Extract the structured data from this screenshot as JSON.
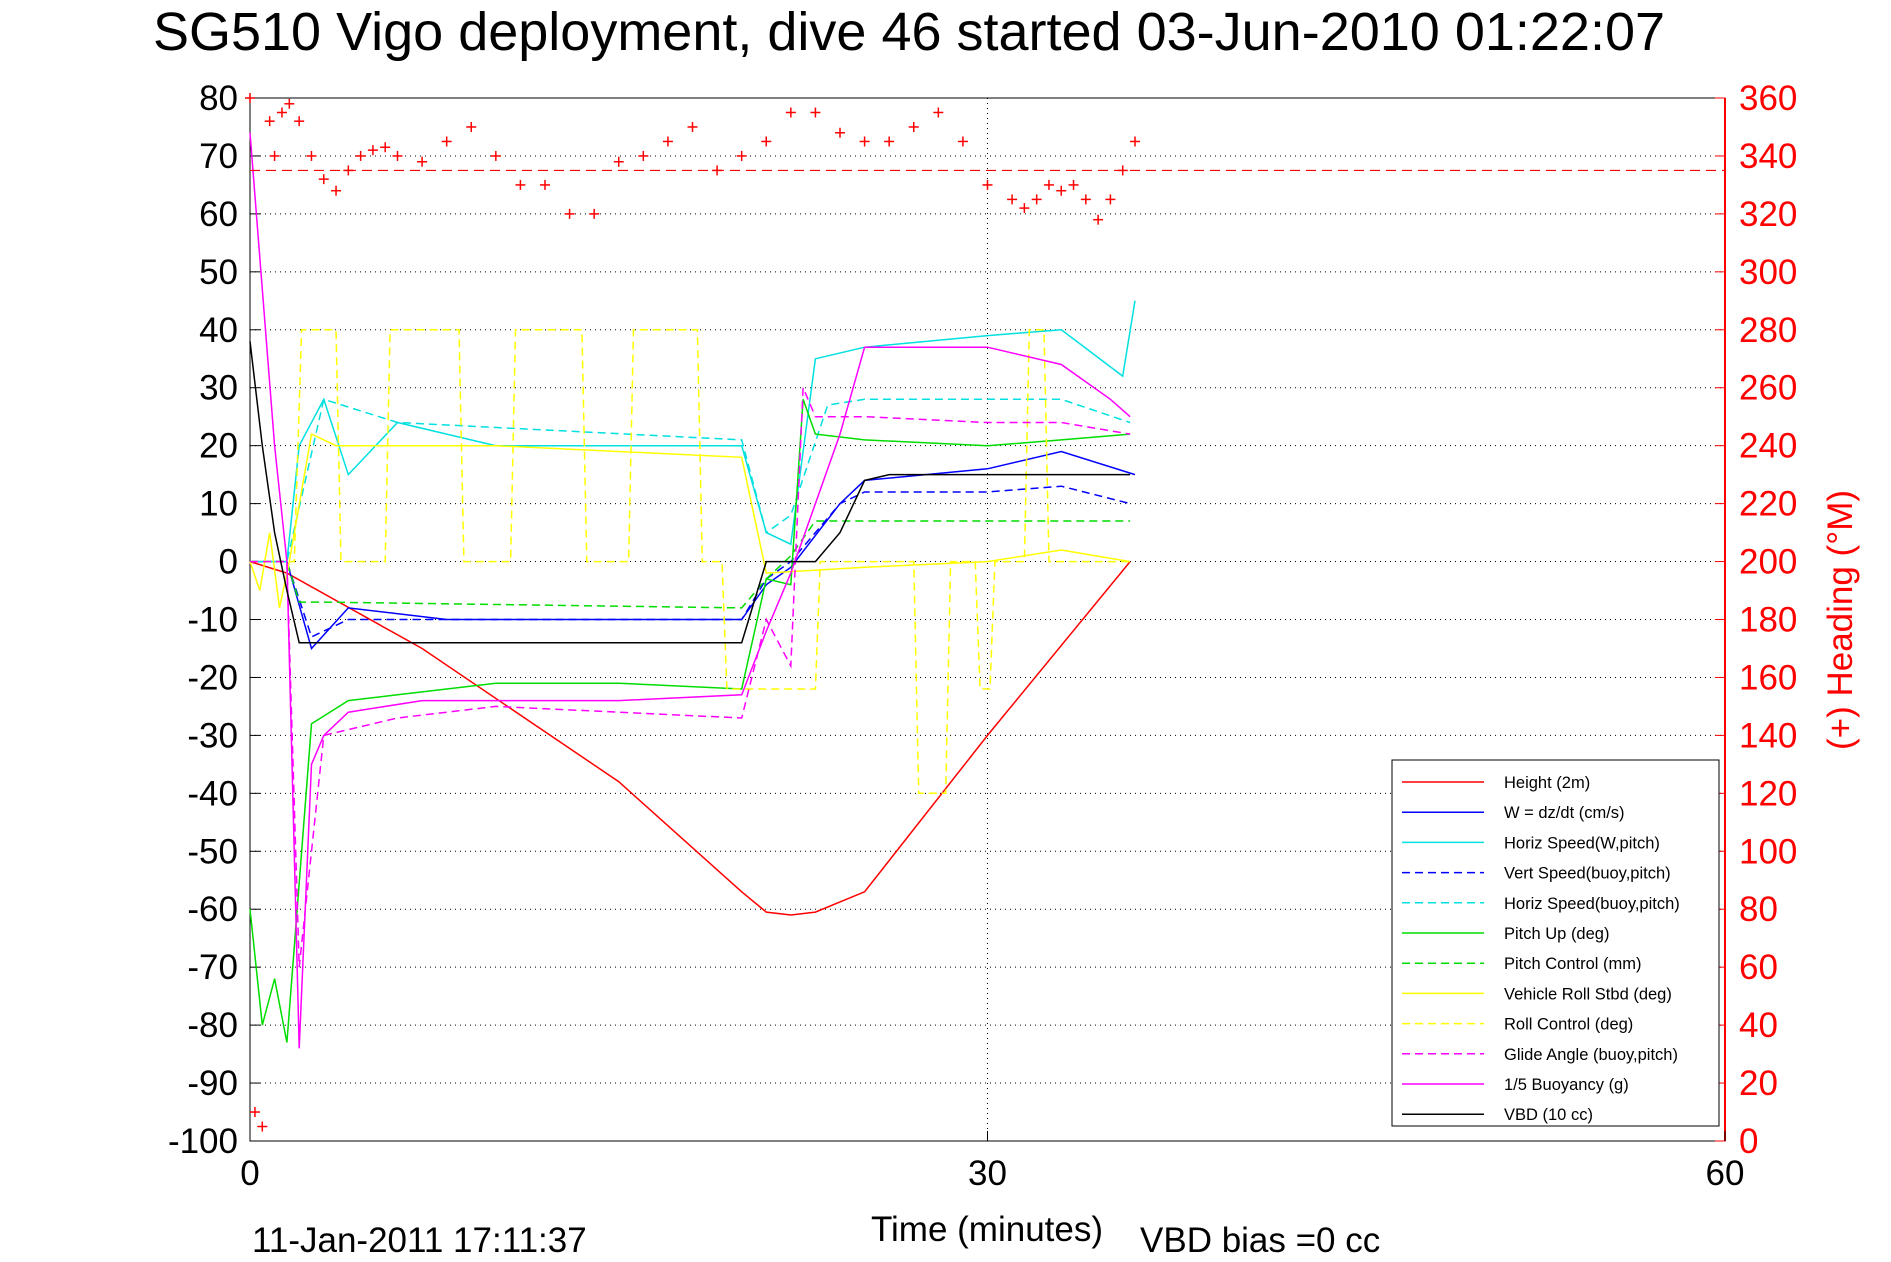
{
  "chart_data": {
    "type": "line",
    "title": "SG510 Vigo deployment, dive 46 started 03-Jun-2010 01:22:07",
    "xlabel": "Time (minutes)",
    "ylabel_left": "",
    "ylabel_right": "(+) Heading (°M)",
    "xlim": [
      0,
      60
    ],
    "ylim_left": [
      -100,
      80
    ],
    "ylim_right": [
      0,
      360
    ],
    "x_ticks": [
      "0",
      "30",
      "60"
    ],
    "y_ticks_left": [
      "80",
      "70",
      "60",
      "50",
      "40",
      "30",
      "20",
      "10",
      "0",
      "-10",
      "-20",
      "-30",
      "-40",
      "-50",
      "-60",
      "-70",
      "-80",
      "-90",
      "-100"
    ],
    "y_ticks_right": [
      "360",
      "340",
      "320",
      "300",
      "280",
      "260",
      "240",
      "220",
      "200",
      "180",
      "160",
      "140",
      "120",
      "100",
      "80",
      "60",
      "40",
      "20",
      "0"
    ],
    "grid": "dotted",
    "legend_position": "bottom-right",
    "footer_left": "11-Jan-2011 17:11:37",
    "footer_right": "VBD bias =0 cc",
    "series": [
      {
        "name": "Height (2m)",
        "color": "#ff0000",
        "style": "solid",
        "x": [
          0,
          1.5,
          7,
          15,
          20,
          21,
          22,
          23,
          25,
          30,
          35.8
        ],
        "y": [
          0,
          -2,
          -15,
          -38,
          -57,
          -60.5,
          -61,
          -60.5,
          -57,
          -30,
          0
        ]
      },
      {
        "name": "W = dz/dt (cm/s)",
        "color": "#0000ff",
        "style": "solid",
        "x": [
          0,
          1.5,
          2.5,
          4,
          8,
          12,
          20,
          21,
          22,
          24,
          25,
          30,
          33,
          36
        ],
        "y": [
          0,
          0,
          -15,
          -8,
          -10,
          -10,
          -10,
          -4,
          -1,
          10,
          14,
          16,
          19,
          15
        ]
      },
      {
        "name": "Horiz Speed(W,pitch)",
        "color": "#00e0e0",
        "style": "solid",
        "x": [
          0,
          1.5,
          2,
          3,
          4,
          6,
          10,
          20,
          21,
          22,
          23,
          25,
          30,
          33,
          35.5,
          36
        ],
        "y": [
          0,
          0,
          20,
          28,
          15,
          24,
          20,
          20,
          5,
          3,
          35,
          37,
          39,
          40,
          32,
          45
        ]
      },
      {
        "name": "Vert Speed(buoy,pitch)",
        "color": "#0000ff",
        "style": "dashed",
        "x": [
          0,
          1.5,
          2.5,
          4,
          20,
          21,
          22,
          24,
          25,
          30,
          33,
          35.8
        ],
        "y": [
          0,
          0,
          -13,
          -10,
          -10,
          -3,
          0,
          10,
          12,
          12,
          13,
          10
        ]
      },
      {
        "name": "Horiz Speed(buoy,pitch)",
        "color": "#00e0e0",
        "style": "dashed",
        "x": [
          0,
          1.5,
          3,
          6,
          20,
          21,
          22,
          23.5,
          25,
          30,
          33,
          35.8
        ],
        "y": [
          0,
          0,
          28,
          24,
          21,
          5,
          8,
          27,
          28,
          28,
          28,
          24
        ]
      },
      {
        "name": "Pitch Up (deg)",
        "color": "#00dd00",
        "style": "solid",
        "x": [
          0,
          0.5,
          1,
          1.5,
          2.5,
          4,
          6,
          10,
          15,
          20,
          21,
          22,
          22.5,
          23,
          25,
          30,
          33,
          35.8
        ],
        "y": [
          -60,
          -80,
          -72,
          -83,
          -28,
          -24,
          -23,
          -21,
          -21,
          -22,
          -3,
          -4,
          28,
          22,
          21,
          20,
          21,
          22
        ]
      },
      {
        "name": "Pitch Control (mm)",
        "color": "#00dd00",
        "style": "dashed",
        "x": [
          0,
          1.5,
          2,
          3,
          20,
          21,
          22,
          23,
          25,
          30,
          35.8
        ],
        "y": [
          0,
          0,
          -7,
          -7,
          -8,
          -3,
          1,
          7,
          7,
          7,
          7
        ]
      },
      {
        "name": "Vehicle Roll Stbd (deg)",
        "color": "#ffff00",
        "style": "solid",
        "x": [
          0,
          0.4,
          0.8,
          1.2,
          1.6,
          2.5,
          3.5,
          10,
          20,
          21,
          25,
          30,
          33,
          35.8
        ],
        "y": [
          0,
          -5,
          5,
          -8,
          0,
          22,
          20,
          20,
          18,
          -2,
          -1,
          0,
          2,
          0
        ]
      },
      {
        "name": "Roll Control (deg)",
        "color": "#ffff00",
        "style": "dashed",
        "x": [
          0,
          1.8,
          2.1,
          3.5,
          3.7,
          5.5,
          5.7,
          8.5,
          8.7,
          10.6,
          10.8,
          13.5,
          13.7,
          15.4,
          15.6,
          18.2,
          18.4,
          19.2,
          19.4,
          23,
          23.2,
          27,
          27.2,
          28.3,
          28.5,
          29.5,
          29.7,
          30.1,
          30.3,
          31.5,
          31.7,
          32.3,
          32.5,
          35.8
        ],
        "y": [
          0,
          0,
          40,
          40,
          0,
          0,
          40,
          40,
          0,
          0,
          40,
          40,
          0,
          0,
          40,
          40,
          0,
          0,
          -22,
          -22,
          0,
          0,
          -40,
          -40,
          0,
          0,
          -22,
          -22,
          0,
          0,
          40,
          40,
          0,
          0
        ]
      },
      {
        "name": "Glide Angle (buoy,pitch)",
        "color": "#ff00ff",
        "style": "dashed",
        "x": [
          0,
          1.5,
          2,
          3,
          6,
          10,
          20,
          21,
          22,
          22.5,
          23,
          25,
          30,
          33,
          35.8
        ],
        "y": [
          0,
          0,
          -70,
          -30,
          -27,
          -25,
          -27,
          -10,
          -18,
          30,
          25,
          25,
          24,
          24,
          22
        ]
      },
      {
        "name": "1/5 Buoyancy (g)",
        "color": "#ff00ff",
        "style": "solid",
        "x": [
          0,
          1,
          1.5,
          2,
          2.5,
          3,
          4,
          7,
          15,
          20,
          21,
          22,
          23,
          24,
          25,
          30,
          33,
          35,
          35.8
        ],
        "y": [
          74,
          20,
          0,
          -84,
          -35,
          -30,
          -26,
          -24,
          -24,
          -23,
          -12,
          -2,
          10,
          22,
          37,
          37,
          34,
          28,
          25
        ]
      },
      {
        "name": "VBD (10 cc)",
        "color": "#000000",
        "style": "solid",
        "x": [
          0,
          0.5,
          1,
          1.5,
          2,
          20,
          21,
          23,
          24,
          25,
          26,
          30,
          35.8
        ],
        "y": [
          38,
          20,
          5,
          -5,
          -14,
          -14,
          0,
          0,
          5,
          14,
          15,
          15,
          15
        ]
      }
    ],
    "heading_series": {
      "name": "Heading (°M)",
      "color": "#ff0000",
      "marker": "+",
      "mean": 335,
      "x": [
        0,
        0.2,
        0.5,
        0.8,
        1,
        1.3,
        1.6,
        2,
        2.5,
        3,
        3.5,
        4,
        4.5,
        5,
        5.5,
        6,
        7,
        8,
        9,
        10,
        11,
        12,
        13,
        14,
        15,
        16,
        17,
        18,
        19,
        20,
        21,
        22,
        23,
        24,
        25,
        26,
        27,
        28,
        29,
        30,
        31,
        31.5,
        32,
        32.5,
        33,
        33.5,
        34,
        34.5,
        35,
        35.5,
        36
      ],
      "y": [
        360,
        10,
        5,
        352,
        340,
        355,
        358,
        352,
        340,
        332,
        328,
        335,
        340,
        342,
        343,
        340,
        338,
        345,
        350,
        340,
        330,
        330,
        320,
        320,
        338,
        340,
        345,
        350,
        335,
        340,
        345,
        355,
        355,
        348,
        345,
        345,
        350,
        355,
        345,
        330,
        325,
        322,
        325,
        330,
        328,
        330,
        325,
        318,
        325,
        335,
        345
      ]
    }
  }
}
